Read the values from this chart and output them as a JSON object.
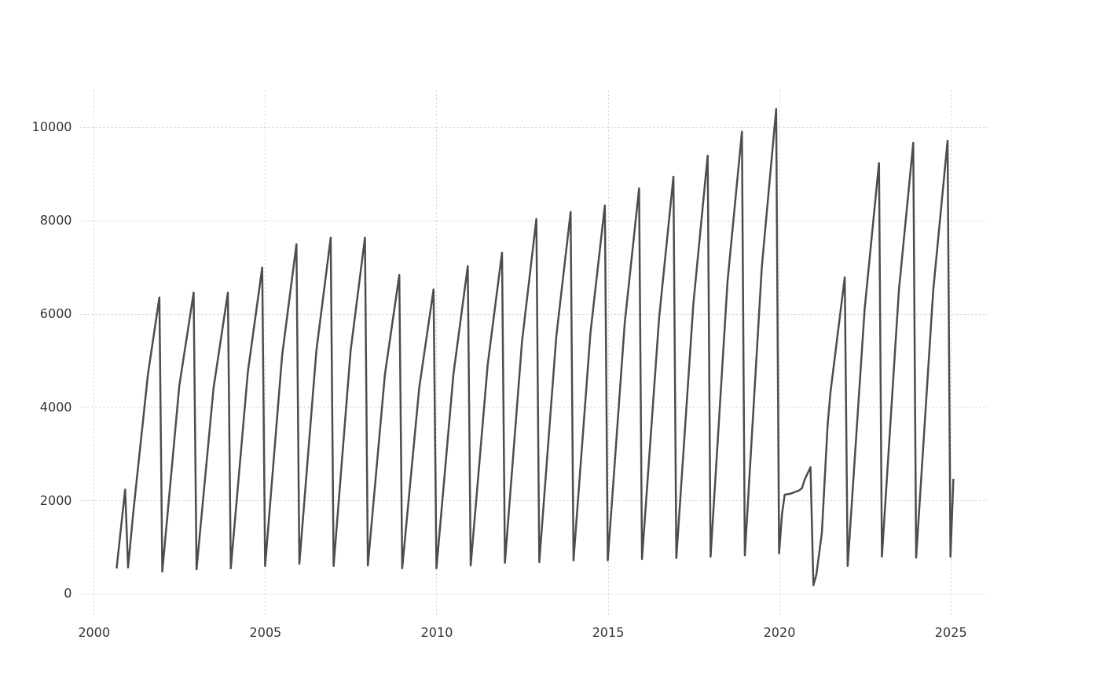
{
  "chart_data": {
    "type": "line",
    "x": [
      "2000-09",
      "2000-12",
      "2001-01",
      "2001-03",
      "2001-08",
      "2001-12",
      "2002-01",
      "2002-07",
      "2002-12",
      "2003-01",
      "2003-07",
      "2003-12",
      "2004-01",
      "2004-07",
      "2004-12",
      "2005-01",
      "2005-07",
      "2005-12",
      "2006-01",
      "2006-07",
      "2006-12",
      "2007-01",
      "2007-07",
      "2007-12",
      "2008-01",
      "2008-07",
      "2008-12",
      "2009-01",
      "2009-07",
      "2009-12",
      "2010-01",
      "2010-07",
      "2010-12",
      "2011-01",
      "2011-07",
      "2011-12",
      "2012-01",
      "2012-07",
      "2012-12",
      "2013-01",
      "2013-07",
      "2013-12",
      "2014-01",
      "2014-07",
      "2014-12",
      "2015-01",
      "2015-07",
      "2015-12",
      "2016-01",
      "2016-07",
      "2016-12",
      "2017-01",
      "2017-07",
      "2017-12",
      "2018-01",
      "2018-07",
      "2018-12",
      "2019-01",
      "2019-07",
      "2019-12",
      "2020-01",
      "2020-02",
      "2020-03",
      "2020-05",
      "2020-08",
      "2020-09",
      "2020-10",
      "2020-12",
      "2021-01",
      "2021-02",
      "2021-04",
      "2021-06",
      "2021-07",
      "2021-12",
      "2022-01",
      "2022-07",
      "2022-12",
      "2023-01",
      "2023-07",
      "2023-12",
      "2024-01",
      "2024-07",
      "2024-12",
      "2025-01",
      "2025-02"
    ],
    "series": [
      {
        "color": "#4d4d4d",
        "values": [
          540,
          2230,
          560,
          1800,
          4700,
          6350,
          470,
          4450,
          6450,
          520,
          4400,
          6450,
          540,
          4750,
          6990,
          590,
          5100,
          7490,
          640,
          5200,
          7630,
          590,
          5200,
          7630,
          600,
          4700,
          6830,
          540,
          4400,
          6520,
          540,
          4700,
          7020,
          600,
          4900,
          7310,
          660,
          5400,
          8030,
          670,
          5500,
          8180,
          710,
          5600,
          8320,
          710,
          5800,
          8690,
          740,
          5900,
          8940,
          760,
          6200,
          9390,
          790,
          6700,
          9900,
          820,
          7000,
          10390,
          860,
          1700,
          2120,
          2140,
          2210,
          2260,
          2450,
          2710,
          180,
          400,
          1300,
          3600,
          4300,
          6780,
          590,
          6100,
          9230,
          790,
          6500,
          9660,
          770,
          6500,
          9710,
          790,
          2460
        ]
      }
    ],
    "xlim": [
      "1999-08",
      "2026-02"
    ],
    "xticks": [
      "2000",
      "2005",
      "2010",
      "2015",
      "2020",
      "2025"
    ],
    "ylim": [
      -490,
      10790
    ],
    "yticks": [
      0,
      2000,
      4000,
      6000,
      8000,
      10000
    ],
    "grid": true,
    "legend": false,
    "marker": "none",
    "line_style": "solid"
  }
}
